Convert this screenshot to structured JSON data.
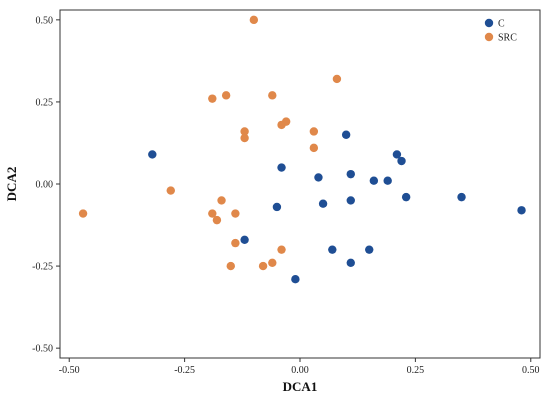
{
  "chart_data": {
    "type": "scatter",
    "xlabel": "DCA1",
    "ylabel": "DCA2",
    "xlim": [
      -0.52,
      0.52
    ],
    "ylim": [
      -0.53,
      0.53
    ],
    "xticks": [
      -0.5,
      -0.25,
      0.0,
      0.25,
      0.5
    ],
    "yticks": [
      -0.5,
      -0.25,
      0.0,
      0.25,
      0.5
    ],
    "xtick_labels": [
      "-0.50",
      "-0.25",
      "0.00",
      "0.25",
      "0.50"
    ],
    "ytick_labels": [
      "-0.50",
      "-0.25",
      "0.00",
      "0.25",
      "0.50"
    ],
    "grid": false,
    "legend_position": "top-right",
    "series": [
      {
        "name": "C",
        "color": "#1f4e94",
        "points": [
          [
            -0.32,
            0.09
          ],
          [
            -0.12,
            -0.17
          ],
          [
            -0.04,
            0.05
          ],
          [
            -0.05,
            -0.07
          ],
          [
            0.04,
            0.02
          ],
          [
            0.1,
            0.15
          ],
          [
            0.11,
            0.03
          ],
          [
            0.11,
            -0.05
          ],
          [
            0.05,
            -0.06
          ],
          [
            0.07,
            -0.2
          ],
          [
            0.11,
            -0.24
          ],
          [
            0.15,
            -0.2
          ],
          [
            0.16,
            0.01
          ],
          [
            0.19,
            0.01
          ],
          [
            0.21,
            0.09
          ],
          [
            0.22,
            0.07
          ],
          [
            0.23,
            -0.04
          ],
          [
            0.35,
            -0.04
          ],
          [
            0.48,
            -0.08
          ],
          [
            -0.01,
            -0.29
          ]
        ]
      },
      {
        "name": "SRC",
        "color": "#e0884a",
        "points": [
          [
            -0.1,
            0.5
          ],
          [
            0.08,
            0.32
          ],
          [
            -0.19,
            0.26
          ],
          [
            -0.16,
            0.27
          ],
          [
            -0.06,
            0.27
          ],
          [
            -0.12,
            0.16
          ],
          [
            -0.12,
            0.14
          ],
          [
            -0.04,
            0.18
          ],
          [
            -0.03,
            0.19
          ],
          [
            0.03,
            0.16
          ],
          [
            0.03,
            0.11
          ],
          [
            -0.28,
            -0.02
          ],
          [
            -0.47,
            -0.09
          ],
          [
            -0.17,
            -0.05
          ],
          [
            -0.19,
            -0.09
          ],
          [
            -0.18,
            -0.11
          ],
          [
            -0.14,
            -0.09
          ],
          [
            -0.14,
            -0.18
          ],
          [
            -0.04,
            -0.2
          ],
          [
            -0.15,
            -0.25
          ],
          [
            -0.08,
            -0.25
          ],
          [
            -0.06,
            -0.24
          ]
        ]
      }
    ]
  }
}
